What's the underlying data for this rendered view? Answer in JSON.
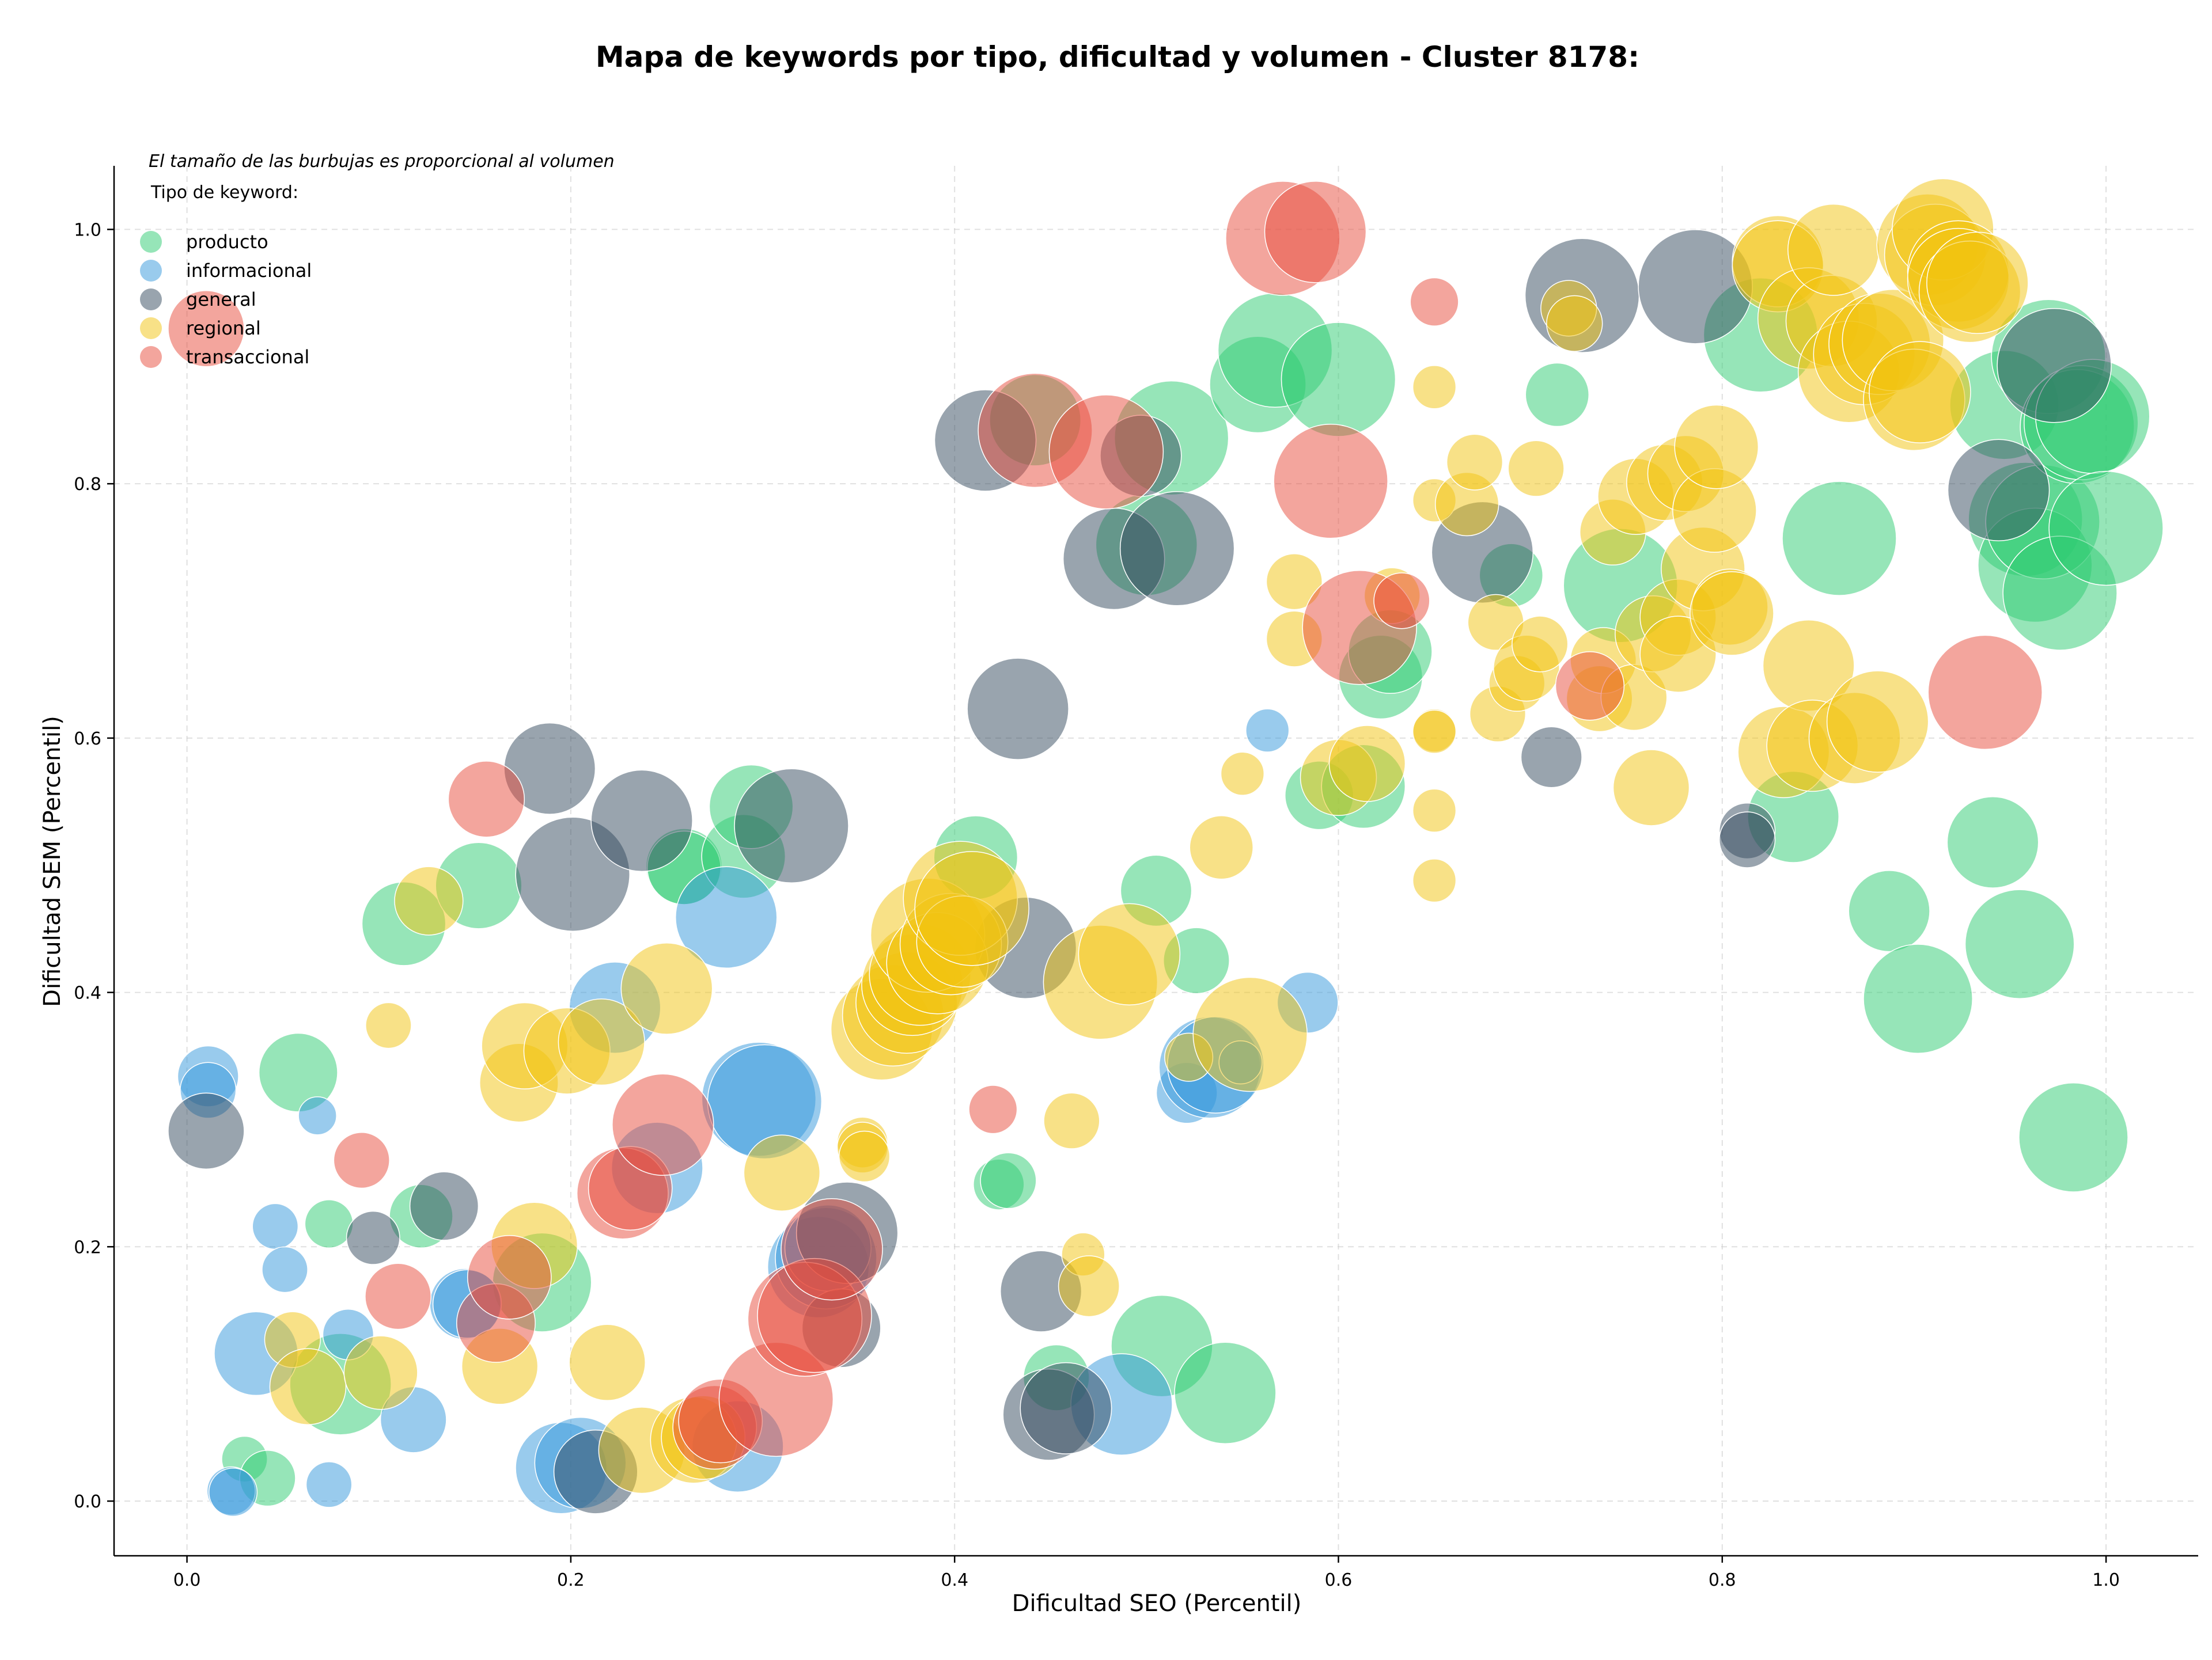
{
  "chart_data": {
    "type": "scatter",
    "title": "Mapa de keywords por tipo, dificultad y volumen - Cluster 8178:",
    "subtitle": "El tamaño de las burbujas es proporcional al volumen",
    "xlabel": "Dificultad SEO (Percentil)",
    "ylabel": "Dificultad SEM (Percentil)",
    "xlim": [
      -0.038,
      1.048
    ],
    "ylim": [
      -0.043,
      1.05
    ],
    "xticks": [
      "0.0",
      "0.2",
      "0.4",
      "0.6",
      "0.8",
      "1.0"
    ],
    "yticks": [
      "0.0",
      "0.2",
      "0.4",
      "0.6",
      "0.8",
      "1.0"
    ],
    "grid": true,
    "legend_title": "Tipo de keyword:",
    "legend_position": "top-left",
    "size_scale": "relative bubble radius (proportional to volume)",
    "series": [
      {
        "name": "producto",
        "color": "#2ecc71",
        "points": [
          [
            0.03,
            0.033,
            18
          ],
          [
            0.042,
            0.018,
            22
          ],
          [
            0.058,
            0.337,
            31
          ],
          [
            0.074,
            0.218,
            19
          ],
          [
            0.08,
            0.092,
            40
          ],
          [
            0.113,
            0.454,
            33
          ],
          [
            0.122,
            0.224,
            25
          ],
          [
            0.152,
            0.484,
            34
          ],
          [
            0.185,
            0.172,
            39
          ],
          [
            0.259,
            0.499,
            30
          ],
          [
            0.259,
            0.498,
            29
          ],
          [
            0.29,
            0.507,
            33
          ],
          [
            0.294,
            0.546,
            33
          ],
          [
            0.411,
            0.506,
            33
          ],
          [
            0.423,
            0.249,
            20
          ],
          [
            0.428,
            0.252,
            22
          ],
          [
            0.442,
            0.85,
            36
          ],
          [
            0.453,
            0.097,
            26
          ],
          [
            0.5,
            0.752,
            40
          ],
          [
            0.505,
            0.48,
            28
          ],
          [
            0.508,
            0.122,
            40
          ],
          [
            0.513,
            0.836,
            45
          ],
          [
            0.526,
            0.425,
            26
          ],
          [
            0.541,
            0.085,
            40
          ],
          [
            0.558,
            0.878,
            38
          ],
          [
            0.567,
            0.905,
            45
          ],
          [
            0.59,
            0.555,
            27
          ],
          [
            0.6,
            0.882,
            45
          ],
          [
            0.613,
            0.562,
            33
          ],
          [
            0.622,
            0.648,
            33
          ],
          [
            0.627,
            0.668,
            33
          ],
          [
            0.69,
            0.728,
            25
          ],
          [
            0.714,
            0.87,
            25
          ],
          [
            0.747,
            0.72,
            45
          ],
          [
            0.82,
            0.917,
            45
          ],
          [
            0.837,
            0.538,
            36
          ],
          [
            0.861,
            0.757,
            45
          ],
          [
            0.887,
            0.464,
            32
          ],
          [
            0.902,
            0.395,
            43
          ],
          [
            0.941,
            0.518,
            36
          ],
          [
            0.947,
            0.862,
            43
          ],
          [
            0.955,
            0.438,
            43
          ],
          [
            0.958,
            0.772,
            45
          ],
          [
            0.963,
            0.736,
            45
          ],
          [
            0.967,
            0.77,
            45
          ],
          [
            0.97,
            0.9,
            45
          ],
          [
            0.976,
            0.714,
            45
          ],
          [
            0.983,
            0.286,
            43
          ],
          [
            0.985,
            0.845,
            45
          ],
          [
            0.987,
            0.848,
            45
          ],
          [
            0.993,
            0.853,
            45
          ],
          [
            1.0,
            0.765,
            45
          ]
        ]
      },
      {
        "name": "informacional",
        "color": "#3498db",
        "points": [
          [
            0.011,
            0.334,
            24
          ],
          [
            0.011,
            0.323,
            22
          ],
          [
            0.023,
            0.008,
            19
          ],
          [
            0.024,
            0.007,
            19
          ],
          [
            0.036,
            0.116,
            33
          ],
          [
            0.046,
            0.216,
            18
          ],
          [
            0.051,
            0.182,
            18
          ],
          [
            0.068,
            0.303,
            15
          ],
          [
            0.074,
            0.013,
            18
          ],
          [
            0.084,
            0.131,
            20
          ],
          [
            0.118,
            0.064,
            26
          ],
          [
            0.145,
            0.155,
            28
          ],
          [
            0.146,
            0.155,
            27
          ],
          [
            0.195,
            0.026,
            36
          ],
          [
            0.205,
            0.03,
            36
          ],
          [
            0.223,
            0.388,
            36
          ],
          [
            0.245,
            0.262,
            36
          ],
          [
            0.281,
            0.459,
            40
          ],
          [
            0.287,
            0.043,
            36
          ],
          [
            0.298,
            0.316,
            45
          ],
          [
            0.301,
            0.314,
            45
          ],
          [
            0.329,
            0.184,
            40
          ],
          [
            0.333,
            0.191,
            40
          ],
          [
            0.334,
            0.199,
            34
          ],
          [
            0.487,
            0.076,
            40
          ],
          [
            0.521,
            0.321,
            24
          ],
          [
            0.533,
            0.341,
            40
          ],
          [
            0.536,
            0.343,
            38
          ],
          [
            0.549,
            0.345,
            17
          ],
          [
            0.563,
            0.606,
            17
          ],
          [
            0.584,
            0.392,
            24
          ]
        ]
      },
      {
        "name": "general",
        "color": "#34495e",
        "points": [
          [
            0.01,
            0.291,
            30
          ],
          [
            0.097,
            0.207,
            21
          ],
          [
            0.134,
            0.232,
            27
          ],
          [
            0.189,
            0.576,
            36
          ],
          [
            0.201,
            0.493,
            45
          ],
          [
            0.213,
            0.023,
            33
          ],
          [
            0.237,
            0.535,
            40
          ],
          [
            0.315,
            0.531,
            45
          ],
          [
            0.341,
            0.136,
            31
          ],
          [
            0.344,
            0.211,
            40
          ],
          [
            0.416,
            0.834,
            40
          ],
          [
            0.437,
            0.435,
            40
          ],
          [
            0.433,
            0.623,
            40
          ],
          [
            0.445,
            0.165,
            32
          ],
          [
            0.449,
            0.068,
            36
          ],
          [
            0.458,
            0.073,
            36
          ],
          [
            0.483,
            0.741,
            40
          ],
          [
            0.497,
            0.822,
            32
          ],
          [
            0.516,
            0.749,
            45
          ],
          [
            0.675,
            0.746,
            40
          ],
          [
            0.711,
            0.585,
            24
          ],
          [
            0.727,
            0.948,
            45
          ],
          [
            0.786,
            0.955,
            45
          ],
          [
            0.813,
            0.527,
            22
          ],
          [
            0.813,
            0.52,
            22
          ],
          [
            0.944,
            0.795,
            40
          ],
          [
            0.973,
            0.893,
            45
          ]
        ]
      },
      {
        "name": "regional",
        "color": "#f1c40f",
        "points": [
          [
            0.055,
            0.127,
            22
          ],
          [
            0.063,
            0.09,
            30
          ],
          [
            0.101,
            0.101,
            29
          ],
          [
            0.105,
            0.374,
            18
          ],
          [
            0.126,
            0.472,
            27
          ],
          [
            0.163,
            0.106,
            30
          ],
          [
            0.173,
            0.329,
            31
          ],
          [
            0.176,
            0.358,
            34
          ],
          [
            0.181,
            0.201,
            34
          ],
          [
            0.198,
            0.354,
            34
          ],
          [
            0.216,
            0.361,
            34
          ],
          [
            0.219,
            0.109,
            30
          ],
          [
            0.237,
            0.04,
            34
          ],
          [
            0.25,
            0.403,
            36
          ],
          [
            0.264,
            0.048,
            34
          ],
          [
            0.269,
            0.05,
            33
          ],
          [
            0.31,
            0.258,
            30
          ],
          [
            0.352,
            0.282,
            20
          ],
          [
            0.352,
            0.278,
            20
          ],
          [
            0.353,
            0.271,
            20
          ],
          [
            0.362,
            0.371,
            40
          ],
          [
            0.368,
            0.382,
            40
          ],
          [
            0.375,
            0.392,
            40
          ],
          [
            0.378,
            0.406,
            40
          ],
          [
            0.382,
            0.414,
            40
          ],
          [
            0.386,
            0.445,
            45
          ],
          [
            0.391,
            0.423,
            40
          ],
          [
            0.398,
            0.438,
            40
          ],
          [
            0.403,
            0.474,
            45
          ],
          [
            0.404,
            0.44,
            36
          ],
          [
            0.409,
            0.466,
            45
          ],
          [
            0.461,
            0.299,
            22
          ],
          [
            0.467,
            0.194,
            17
          ],
          [
            0.47,
            0.169,
            24
          ],
          [
            0.476,
            0.408,
            45
          ],
          [
            0.491,
            0.43,
            40
          ],
          [
            0.522,
            0.349,
            19
          ],
          [
            0.539,
            0.514,
            25
          ],
          [
            0.55,
            0.572,
            17
          ],
          [
            0.554,
            0.367,
            45
          ],
          [
            0.577,
            0.723,
            22
          ],
          [
            0.577,
            0.678,
            22
          ],
          [
            0.6,
            0.569,
            30
          ],
          [
            0.615,
            0.58,
            30
          ],
          [
            0.628,
            0.712,
            22
          ],
          [
            0.65,
            0.876,
            17
          ],
          [
            0.65,
            0.787,
            17
          ],
          [
            0.65,
            0.606,
            17
          ],
          [
            0.65,
            0.605,
            17
          ],
          [
            0.65,
            0.543,
            17
          ],
          [
            0.65,
            0.488,
            17
          ],
          [
            0.667,
            0.784,
            25
          ],
          [
            0.671,
            0.817,
            22
          ],
          [
            0.682,
            0.691,
            22
          ],
          [
            0.683,
            0.619,
            22
          ],
          [
            0.693,
            0.643,
            22
          ],
          [
            0.698,
            0.655,
            26
          ],
          [
            0.703,
            0.812,
            22
          ],
          [
            0.705,
            0.674,
            22
          ],
          [
            0.72,
            0.938,
            22
          ],
          [
            0.723,
            0.926,
            22
          ],
          [
            0.736,
            0.631,
            26
          ],
          [
            0.738,
            0.661,
            26
          ],
          [
            0.743,
            0.762,
            26
          ],
          [
            0.754,
            0.632,
            26
          ],
          [
            0.755,
            0.79,
            30
          ],
          [
            0.763,
            0.561,
            30
          ],
          [
            0.764,
            0.682,
            30
          ],
          [
            0.77,
            0.801,
            30
          ],
          [
            0.777,
            0.695,
            30
          ],
          [
            0.777,
            0.666,
            30
          ],
          [
            0.781,
            0.808,
            30
          ],
          [
            0.79,
            0.733,
            33
          ],
          [
            0.796,
            0.779,
            33
          ],
          [
            0.797,
            0.829,
            33
          ],
          [
            0.804,
            0.703,
            30
          ],
          [
            0.805,
            0.698,
            33
          ],
          [
            0.829,
            0.975,
            36
          ],
          [
            0.829,
            0.971,
            36
          ],
          [
            0.832,
            0.589,
            36
          ],
          [
            0.845,
            0.93,
            40
          ],
          [
            0.845,
            0.657,
            36
          ],
          [
            0.847,
            0.594,
            36
          ],
          [
            0.857,
            0.928,
            36
          ],
          [
            0.858,
            0.984,
            36
          ],
          [
            0.866,
            0.888,
            40
          ],
          [
            0.869,
            0.6,
            36
          ],
          [
            0.874,
            0.902,
            40
          ],
          [
            0.881,
            0.613,
            40
          ],
          [
            0.882,
            0.91,
            40
          ],
          [
            0.889,
            0.913,
            40
          ],
          [
            0.9,
            0.866,
            40
          ],
          [
            0.903,
            0.872,
            40
          ],
          [
            0.907,
            0.988,
            40
          ],
          [
            0.911,
            0.98,
            40
          ],
          [
            0.915,
            1.0,
            40
          ],
          [
            0.923,
            0.967,
            40
          ],
          [
            0.923,
            0.961,
            40
          ],
          [
            0.929,
            0.951,
            40
          ],
          [
            0.933,
            0.958,
            40
          ]
        ]
      },
      {
        "name": "transaccional",
        "color": "#e74c3c",
        "points": [
          [
            0.01,
            0.922,
            30
          ],
          [
            0.091,
            0.268,
            22
          ],
          [
            0.11,
            0.161,
            26
          ],
          [
            0.156,
            0.552,
            30
          ],
          [
            0.161,
            0.14,
            31
          ],
          [
            0.168,
            0.176,
            33
          ],
          [
            0.227,
            0.242,
            36
          ],
          [
            0.231,
            0.246,
            33
          ],
          [
            0.248,
            0.296,
            40
          ],
          [
            0.275,
            0.058,
            33
          ],
          [
            0.278,
            0.063,
            33
          ],
          [
            0.307,
            0.08,
            45
          ],
          [
            0.322,
            0.143,
            45
          ],
          [
            0.327,
            0.146,
            45
          ],
          [
            0.336,
            0.198,
            40
          ],
          [
            0.42,
            0.308,
            19
          ],
          [
            0.442,
            0.842,
            45
          ],
          [
            0.479,
            0.825,
            45
          ],
          [
            0.571,
            0.993,
            45
          ],
          [
            0.588,
            0.998,
            40
          ],
          [
            0.596,
            0.802,
            45
          ],
          [
            0.611,
            0.687,
            45
          ],
          [
            0.633,
            0.708,
            22
          ],
          [
            0.65,
            0.943,
            19
          ],
          [
            0.731,
            0.641,
            27
          ],
          [
            0.937,
            0.636,
            45
          ]
        ]
      }
    ]
  }
}
